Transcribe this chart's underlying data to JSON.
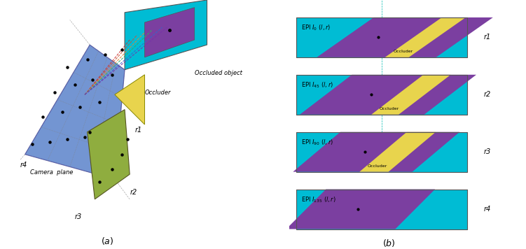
{
  "bg_color": "#ffffff",
  "cyan": "#00bcd4",
  "purple": "#7b3fa0",
  "yellow": "#e8d44d",
  "blue": "#4472c4",
  "olive": "#8fad3f",
  "fig_width": 7.51,
  "fig_height": 3.56,
  "epi_labels": [
    "EPI $I_0$ $(l,r)$",
    "EPI $I_{45}$ $(l,r)$",
    "EPI $I_{90}$ $(l,r)$",
    "EPI $I_{135}$ $(l,r)$"
  ],
  "r_labels": [
    "r1",
    "r2",
    "r3",
    "r4"
  ],
  "caption_a": "$(a)$",
  "caption_b": "$(b)$"
}
